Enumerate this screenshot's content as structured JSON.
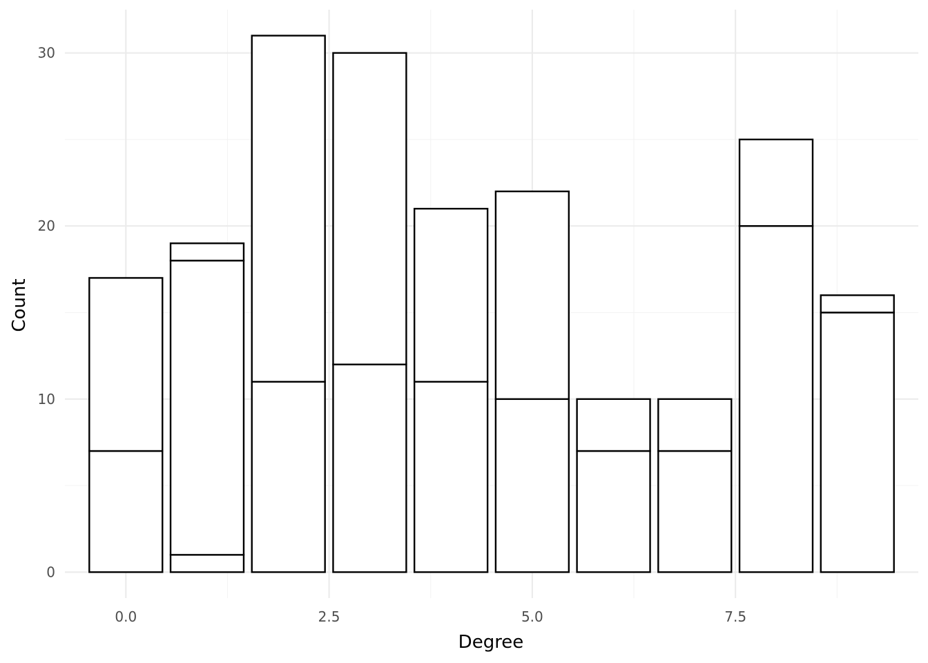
{
  "chart_data": {
    "type": "bar",
    "xlabel": "Degree",
    "ylabel": "Count",
    "x": [
      0,
      1,
      2,
      3,
      4,
      5,
      6,
      7,
      8,
      9
    ],
    "series": [
      {
        "values": [
          7,
          1,
          11,
          12,
          11,
          10,
          7,
          7,
          20,
          15
        ]
      },
      {
        "values": [
          10,
          17,
          20,
          18,
          10,
          12,
          3,
          3,
          5,
          0
        ]
      },
      {
        "values": [
          0,
          1,
          0,
          0,
          0,
          0,
          0,
          0,
          0,
          1
        ]
      }
    ],
    "stacked": true,
    "totals": [
      17,
      19,
      31,
      30,
      21,
      22,
      10,
      10,
      25,
      16
    ],
    "xlim": [
      -0.75,
      9.75
    ],
    "ylim": [
      -1.5,
      32.5
    ],
    "x_ticks": [
      {
        "value": 0.0,
        "label": "0.0"
      },
      {
        "value": 2.5,
        "label": "2.5"
      },
      {
        "value": 5.0,
        "label": "5.0"
      },
      {
        "value": 7.5,
        "label": "7.5"
      }
    ],
    "y_ticks": [
      {
        "value": 0,
        "label": "0"
      },
      {
        "value": 10,
        "label": "10"
      },
      {
        "value": 20,
        "label": "20"
      },
      {
        "value": 30,
        "label": "30"
      }
    ],
    "grid": true,
    "bar_fill": "#ffffff",
    "bar_outline": "#000000"
  }
}
